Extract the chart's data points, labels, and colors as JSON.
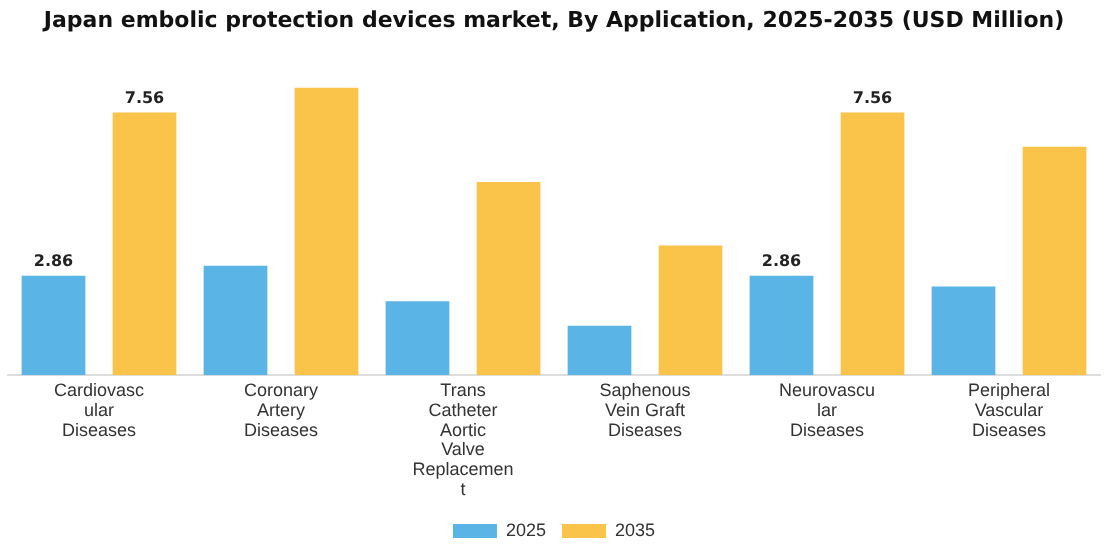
{
  "chart_data": {
    "type": "bar",
    "title": "Japan embolic protection devices market, By Application, 2025-2035 (USD Million)",
    "categories": [
      "Cardiovascular Diseases",
      "Coronary Artery Diseases",
      "Trans Catheter Aortic Valve Replacement",
      "Saphenous Vein Graft Diseases",
      "Neurovascular Diseases",
      "Peripheral Vascular Diseases"
    ],
    "series": [
      {
        "name": "2025",
        "color": "#5ab4e5",
        "values": [
          2.86,
          3.15,
          2.13,
          1.42,
          2.86,
          2.55
        ],
        "value_labels": [
          "2.86",
          null,
          null,
          null,
          "2.86",
          null
        ]
      },
      {
        "name": "2035",
        "color": "#f9c449",
        "values": [
          7.56,
          8.27,
          5.56,
          3.73,
          7.56,
          6.57
        ],
        "value_labels": [
          "7.56",
          null,
          null,
          null,
          "7.56",
          null
        ]
      }
    ],
    "grid": false,
    "legend": "bottom"
  }
}
